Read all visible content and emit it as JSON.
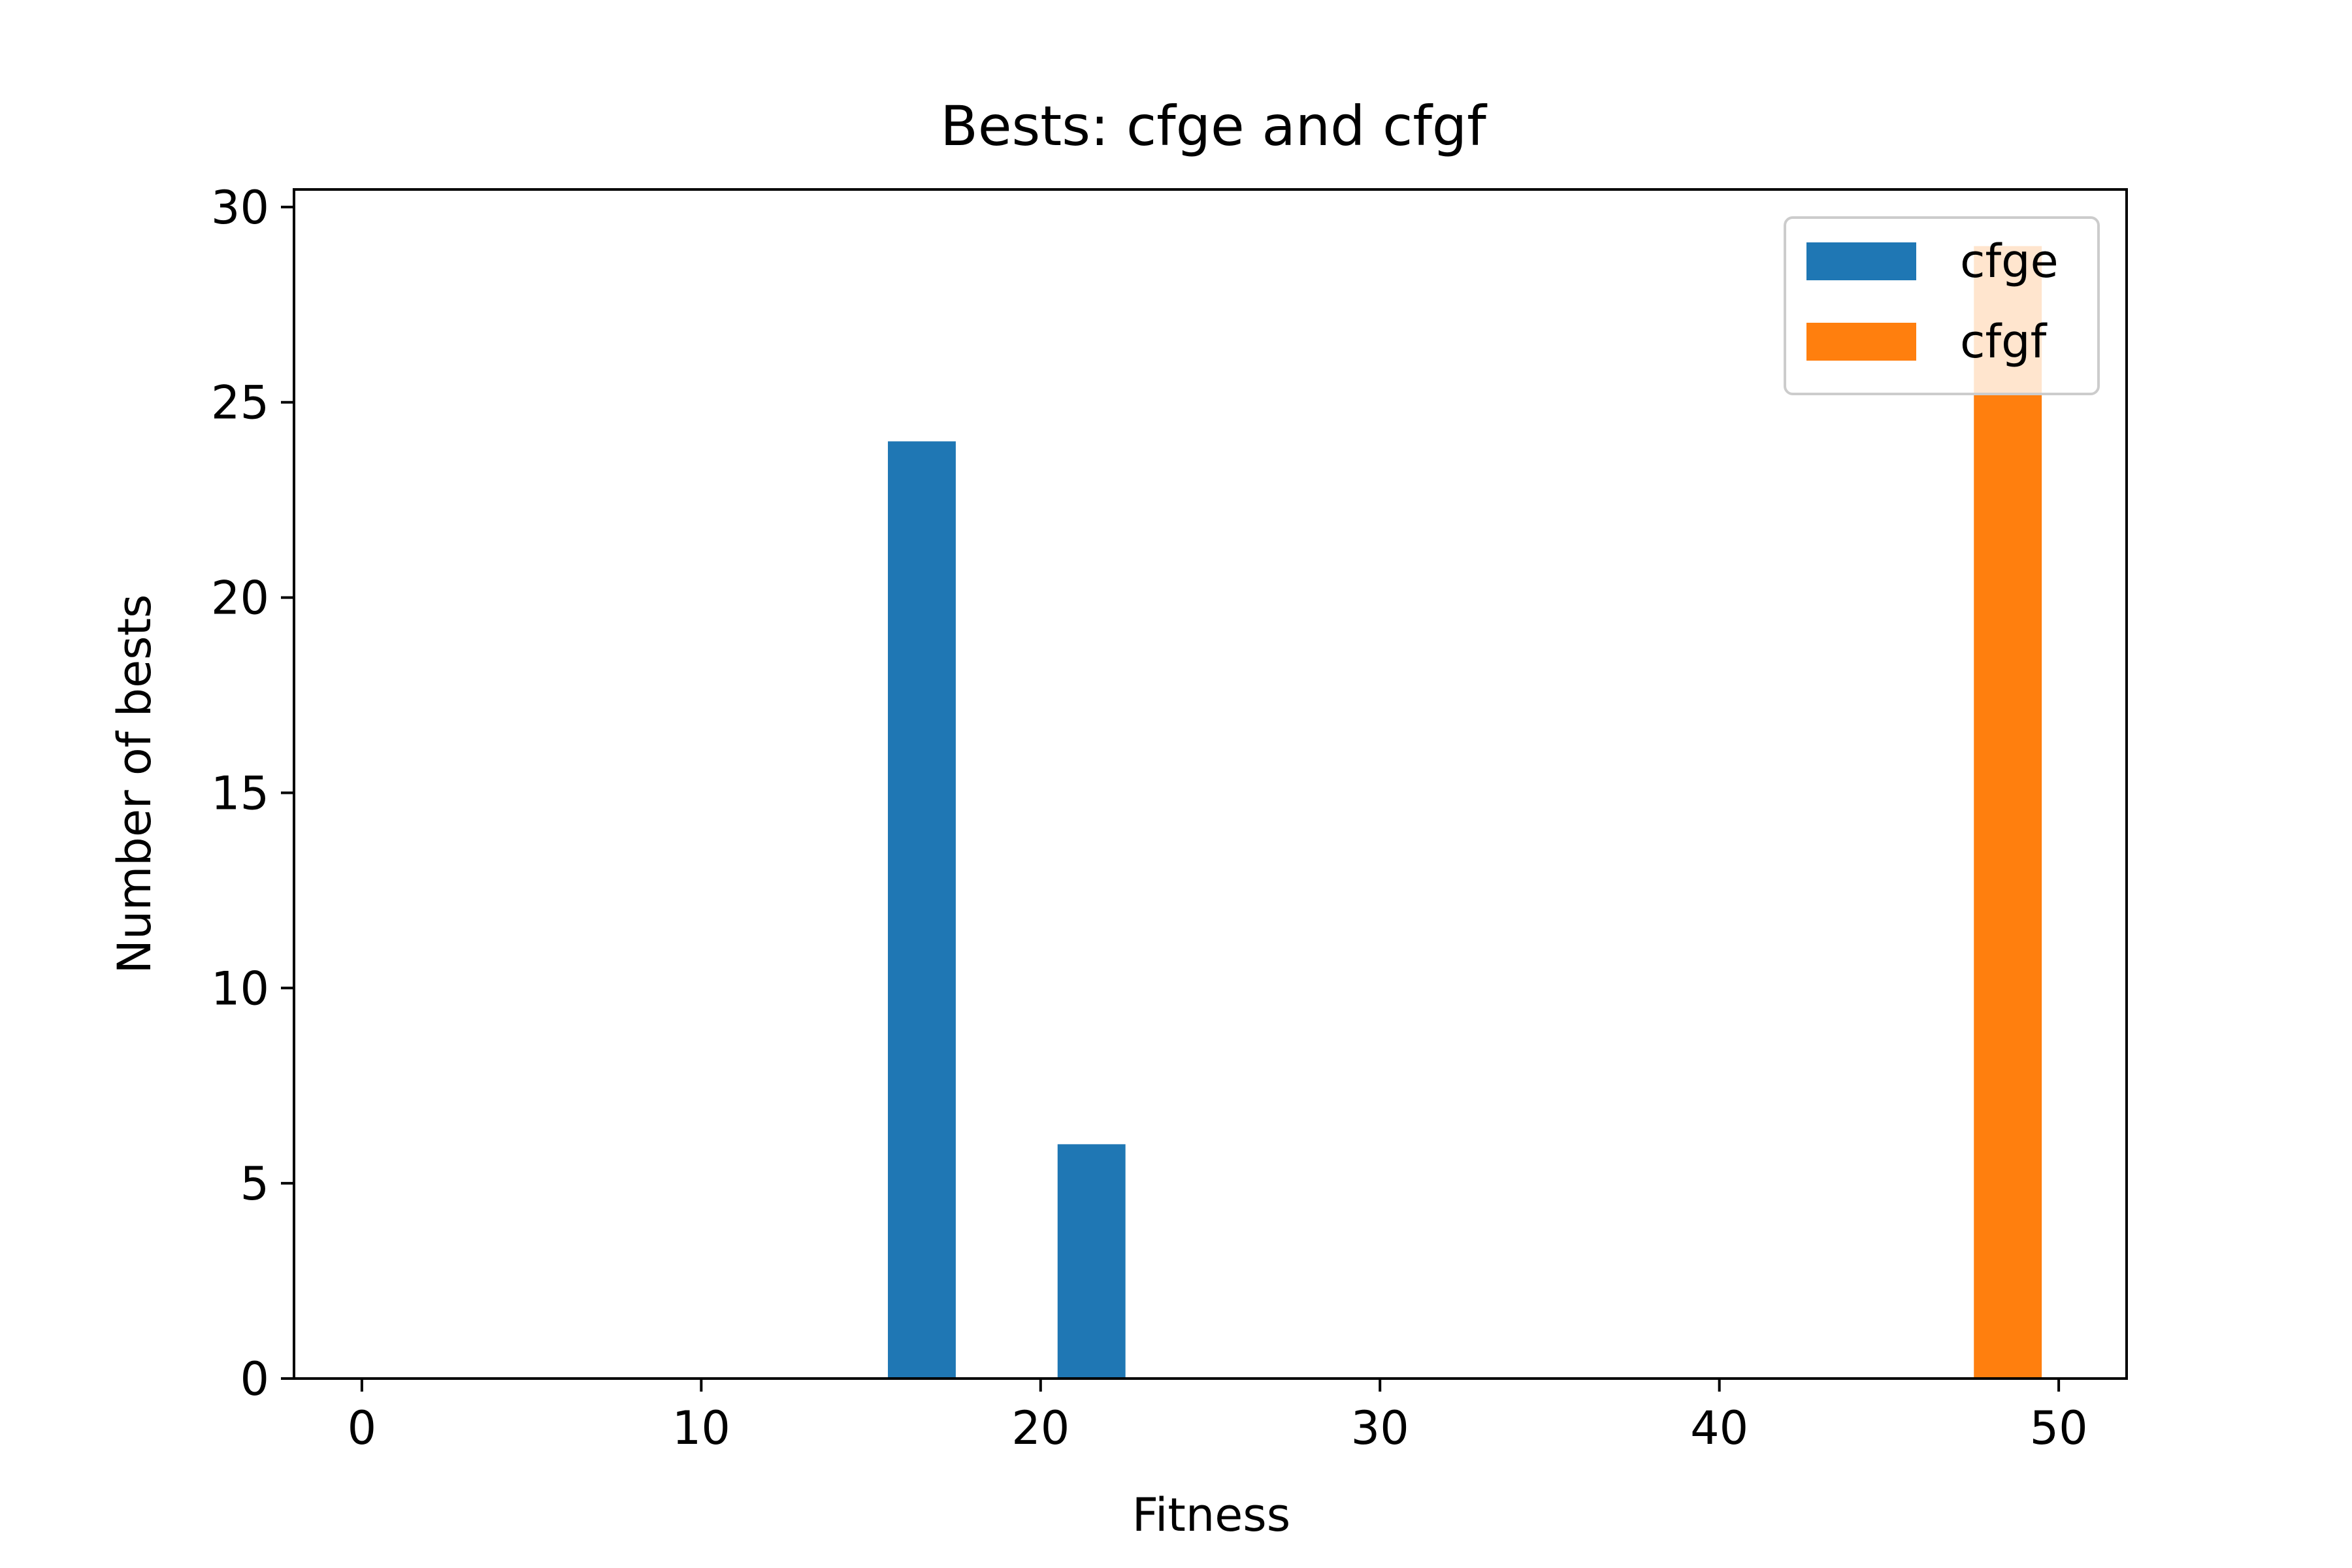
{
  "chart_data": {
    "type": "bar",
    "title": "Bests: cfge and cfgf",
    "xlabel": "Fitness",
    "ylabel": "Number of bests",
    "xlim": [
      -2.0,
      52.0
    ],
    "ylim": [
      0,
      30.45
    ],
    "xticks": [
      0,
      10,
      20,
      30,
      40,
      50
    ],
    "yticks": [
      0,
      5,
      10,
      15,
      20,
      25,
      30
    ],
    "grid": false,
    "legend_position": "top-right",
    "series": [
      {
        "name": "cfge",
        "color": "#1f77b4",
        "bars": [
          {
            "x0": 15.5,
            "x1": 17.5,
            "value": 24
          },
          {
            "x0": 20.5,
            "x1": 22.5,
            "value": 6
          }
        ]
      },
      {
        "name": "cfgf",
        "color": "#ff7f0e",
        "bars": [
          {
            "x0": 47.5,
            "x1": 49.5,
            "value": 29
          }
        ]
      }
    ]
  }
}
